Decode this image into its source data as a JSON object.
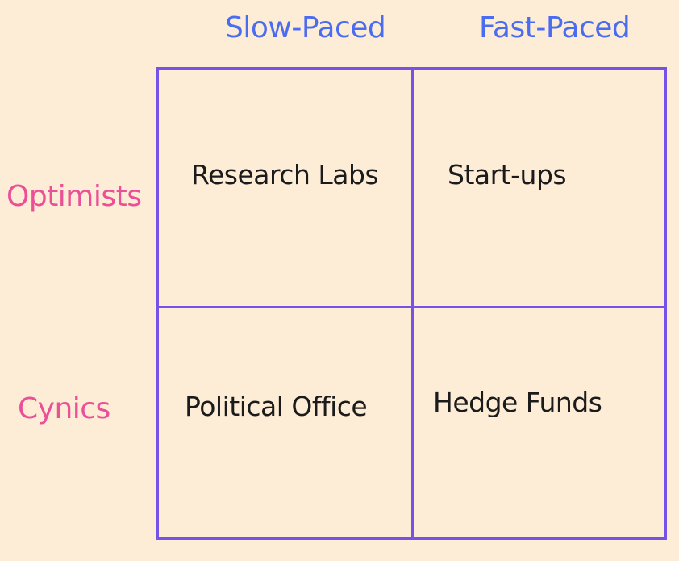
{
  "columns": [
    "Slow-Paced",
    "Fast-Paced"
  ],
  "rows": [
    "Optimists",
    "Cynics"
  ],
  "cells": {
    "optimists_slow": "Research Labs",
    "optimists_fast": "Start-ups",
    "cynics_slow": "Political Office",
    "cynics_fast": "Hedge Funds"
  },
  "colors": {
    "background": "#fdedd6",
    "column_label": "#4a6cf0",
    "row_label": "#ea4f97",
    "grid_line": "#7653e6",
    "cell_text": "#1b1b1b"
  }
}
